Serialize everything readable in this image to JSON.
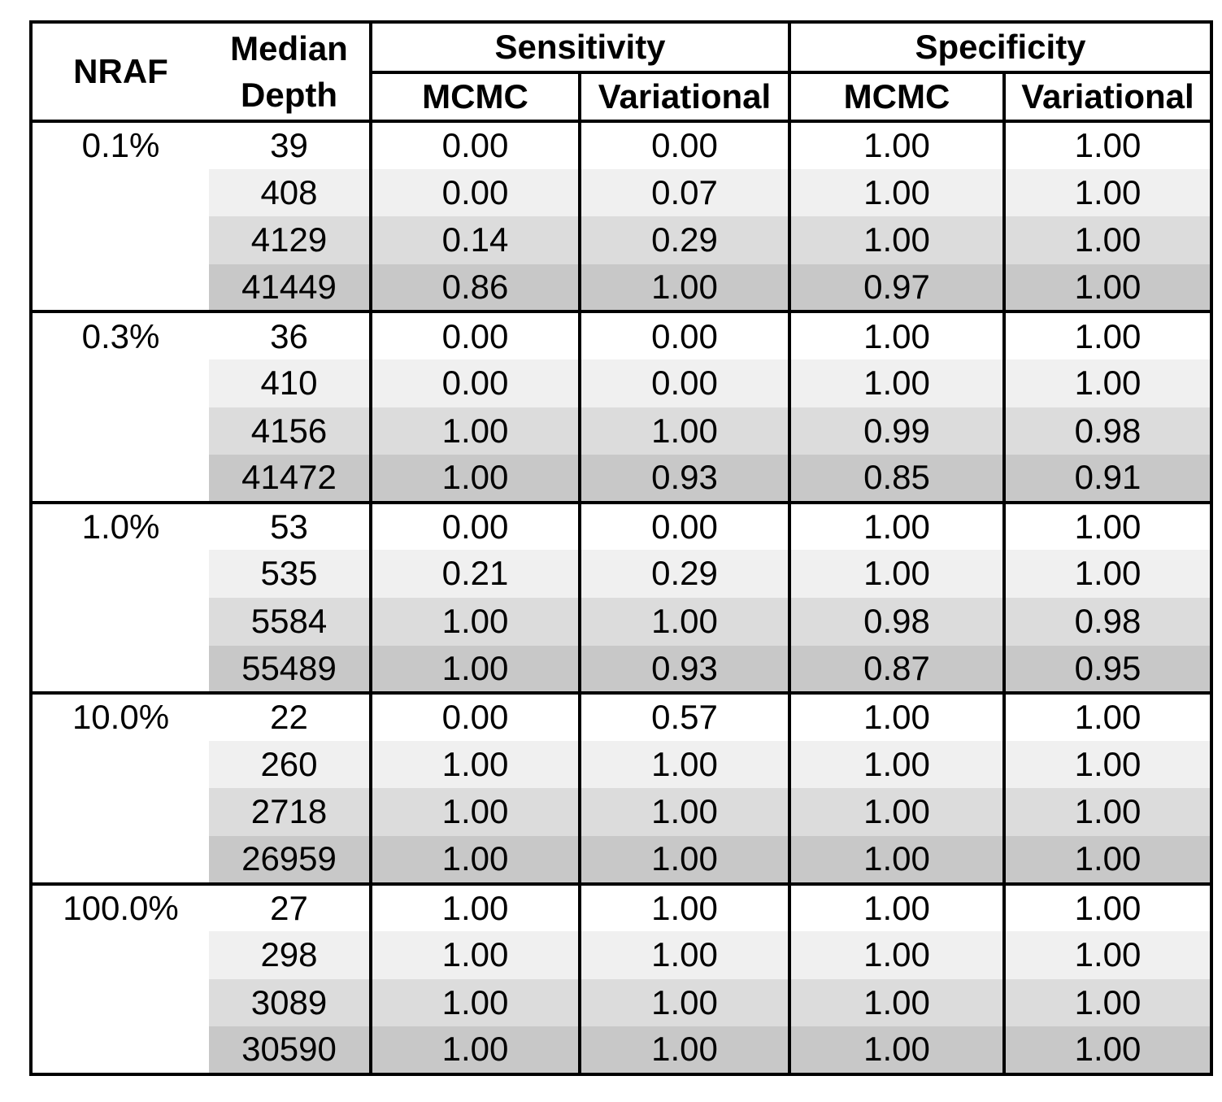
{
  "table": {
    "header": {
      "nraf": "NRAF",
      "median_depth_line1": "Median",
      "median_depth_line2": "Depth",
      "sensitivity": "Sensitivity",
      "specificity": "Specificity",
      "mcmc": "MCMC",
      "variational": "Variational"
    },
    "row_shades": [
      "#ffffff",
      "#f0f0f0",
      "#dcdcdc",
      "#c8c8c8"
    ],
    "border_color": "#000000",
    "groups": [
      {
        "nraf": "0.1%",
        "rows": [
          {
            "depth": "39",
            "sens_mcmc": "0.00",
            "sens_var": "0.00",
            "spec_mcmc": "1.00",
            "spec_var": "1.00"
          },
          {
            "depth": "408",
            "sens_mcmc": "0.00",
            "sens_var": "0.07",
            "spec_mcmc": "1.00",
            "spec_var": "1.00"
          },
          {
            "depth": "4129",
            "sens_mcmc": "0.14",
            "sens_var": "0.29",
            "spec_mcmc": "1.00",
            "spec_var": "1.00"
          },
          {
            "depth": "41449",
            "sens_mcmc": "0.86",
            "sens_var": "1.00",
            "spec_mcmc": "0.97",
            "spec_var": "1.00"
          }
        ]
      },
      {
        "nraf": "0.3%",
        "rows": [
          {
            "depth": "36",
            "sens_mcmc": "0.00",
            "sens_var": "0.00",
            "spec_mcmc": "1.00",
            "spec_var": "1.00"
          },
          {
            "depth": "410",
            "sens_mcmc": "0.00",
            "sens_var": "0.00",
            "spec_mcmc": "1.00",
            "spec_var": "1.00"
          },
          {
            "depth": "4156",
            "sens_mcmc": "1.00",
            "sens_var": "1.00",
            "spec_mcmc": "0.99",
            "spec_var": "0.98"
          },
          {
            "depth": "41472",
            "sens_mcmc": "1.00",
            "sens_var": "0.93",
            "spec_mcmc": "0.85",
            "spec_var": "0.91"
          }
        ]
      },
      {
        "nraf": "1.0%",
        "rows": [
          {
            "depth": "53",
            "sens_mcmc": "0.00",
            "sens_var": "0.00",
            "spec_mcmc": "1.00",
            "spec_var": "1.00"
          },
          {
            "depth": "535",
            "sens_mcmc": "0.21",
            "sens_var": "0.29",
            "spec_mcmc": "1.00",
            "spec_var": "1.00"
          },
          {
            "depth": "5584",
            "sens_mcmc": "1.00",
            "sens_var": "1.00",
            "spec_mcmc": "0.98",
            "spec_var": "0.98"
          },
          {
            "depth": "55489",
            "sens_mcmc": "1.00",
            "sens_var": "0.93",
            "spec_mcmc": "0.87",
            "spec_var": "0.95"
          }
        ]
      },
      {
        "nraf": "10.0%",
        "rows": [
          {
            "depth": "22",
            "sens_mcmc": "0.00",
            "sens_var": "0.57",
            "spec_mcmc": "1.00",
            "spec_var": "1.00"
          },
          {
            "depth": "260",
            "sens_mcmc": "1.00",
            "sens_var": "1.00",
            "spec_mcmc": "1.00",
            "spec_var": "1.00"
          },
          {
            "depth": "2718",
            "sens_mcmc": "1.00",
            "sens_var": "1.00",
            "spec_mcmc": "1.00",
            "spec_var": "1.00"
          },
          {
            "depth": "26959",
            "sens_mcmc": "1.00",
            "sens_var": "1.00",
            "spec_mcmc": "1.00",
            "spec_var": "1.00"
          }
        ]
      },
      {
        "nraf": "100.0%",
        "rows": [
          {
            "depth": "27",
            "sens_mcmc": "1.00",
            "sens_var": "1.00",
            "spec_mcmc": "1.00",
            "spec_var": "1.00"
          },
          {
            "depth": "298",
            "sens_mcmc": "1.00",
            "sens_var": "1.00",
            "spec_mcmc": "1.00",
            "spec_var": "1.00"
          },
          {
            "depth": "3089",
            "sens_mcmc": "1.00",
            "sens_var": "1.00",
            "spec_mcmc": "1.00",
            "spec_var": "1.00"
          },
          {
            "depth": "30590",
            "sens_mcmc": "1.00",
            "sens_var": "1.00",
            "spec_mcmc": "1.00",
            "spec_var": "1.00"
          }
        ]
      }
    ]
  },
  "chart_data": {
    "type": "table",
    "column_groups": [
      "",
      "",
      "Sensitivity",
      "Sensitivity",
      "Specificity",
      "Specificity"
    ],
    "columns": [
      "NRAF",
      "Median Depth",
      "Sensitivity MCMC",
      "Sensitivity Variational",
      "Specificity MCMC",
      "Specificity Variational"
    ],
    "rows": [
      [
        "0.1%",
        39,
        0.0,
        0.0,
        1.0,
        1.0
      ],
      [
        "0.1%",
        408,
        0.0,
        0.07,
        1.0,
        1.0
      ],
      [
        "0.1%",
        4129,
        0.14,
        0.29,
        1.0,
        1.0
      ],
      [
        "0.1%",
        41449,
        0.86,
        1.0,
        0.97,
        1.0
      ],
      [
        "0.3%",
        36,
        0.0,
        0.0,
        1.0,
        1.0
      ],
      [
        "0.3%",
        410,
        0.0,
        0.0,
        1.0,
        1.0
      ],
      [
        "0.3%",
        4156,
        1.0,
        1.0,
        0.99,
        0.98
      ],
      [
        "0.3%",
        41472,
        1.0,
        0.93,
        0.85,
        0.91
      ],
      [
        "1.0%",
        53,
        0.0,
        0.0,
        1.0,
        1.0
      ],
      [
        "1.0%",
        535,
        0.21,
        0.29,
        1.0,
        1.0
      ],
      [
        "1.0%",
        5584,
        1.0,
        1.0,
        0.98,
        0.98
      ],
      [
        "1.0%",
        55489,
        1.0,
        0.93,
        0.87,
        0.95
      ],
      [
        "10.0%",
        22,
        0.0,
        0.57,
        1.0,
        1.0
      ],
      [
        "10.0%",
        260,
        1.0,
        1.0,
        1.0,
        1.0
      ],
      [
        "10.0%",
        2718,
        1.0,
        1.0,
        1.0,
        1.0
      ],
      [
        "10.0%",
        26959,
        1.0,
        1.0,
        1.0,
        1.0
      ],
      [
        "100.0%",
        27,
        1.0,
        1.0,
        1.0,
        1.0
      ],
      [
        "100.0%",
        298,
        1.0,
        1.0,
        1.0,
        1.0
      ],
      [
        "100.0%",
        3089,
        1.0,
        1.0,
        1.0,
        1.0
      ],
      [
        "100.0%",
        30590,
        1.0,
        1.0,
        1.0,
        1.0
      ]
    ],
    "layout_hints": {
      "row_shading": "within each NRAF group, rows shaded white to dark gray by increasing median depth",
      "shaded_columns": "all columns except NRAF",
      "grid": "thick black rules around header, between column blocks, and between NRAF groups"
    }
  }
}
